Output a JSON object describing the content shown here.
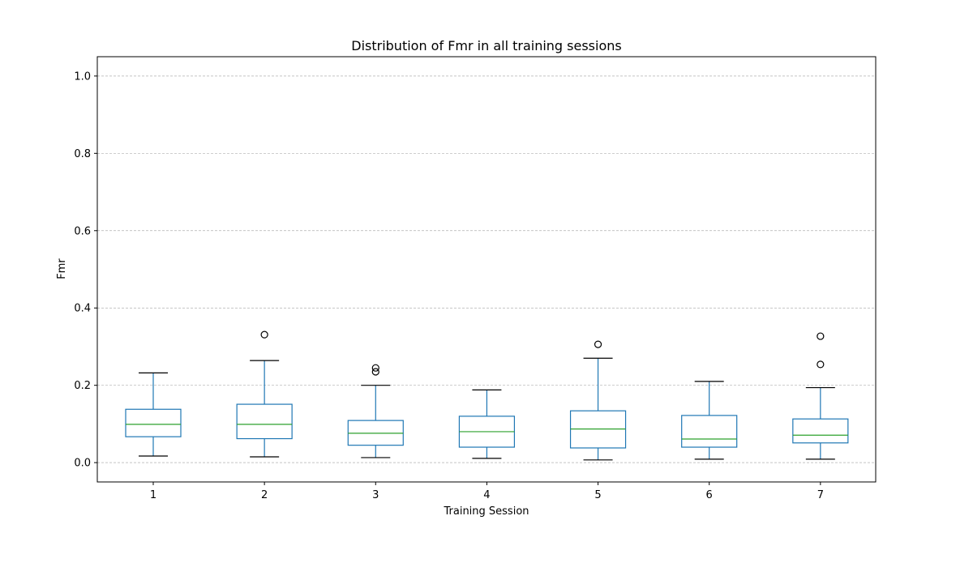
{
  "chart_data": {
    "type": "box",
    "title": "Distribution of Fmr in all training sessions",
    "xlabel": "Training Session",
    "ylabel": "Fmr",
    "ylim": [
      -0.05,
      1.05
    ],
    "yticks": [
      0.0,
      0.2,
      0.4,
      0.6,
      0.8,
      1.0
    ],
    "ytick_labels": [
      "0.0",
      "0.2",
      "0.4",
      "0.6",
      "0.8",
      "1.0"
    ],
    "grid": "y-dashed",
    "colors": {
      "box": "#1f77b4",
      "median": "#2ca02c",
      "whisker_cap": "#000000",
      "grid": "#b0b0b0"
    },
    "categories": [
      "1",
      "2",
      "3",
      "4",
      "5",
      "6",
      "7"
    ],
    "boxes": [
      {
        "label": "1",
        "whislo": 0.017,
        "q1": 0.067,
        "med": 0.099,
        "q3": 0.138,
        "whishi": 0.232,
        "fliers": []
      },
      {
        "label": "2",
        "whislo": 0.015,
        "q1": 0.062,
        "med": 0.099,
        "q3": 0.151,
        "whishi": 0.264,
        "fliers": [
          0.331
        ]
      },
      {
        "label": "3",
        "whislo": 0.013,
        "q1": 0.045,
        "med": 0.076,
        "q3": 0.109,
        "whishi": 0.2,
        "fliers": [
          0.235,
          0.245
        ]
      },
      {
        "label": "4",
        "whislo": 0.011,
        "q1": 0.04,
        "med": 0.08,
        "q3": 0.12,
        "whishi": 0.188,
        "fliers": []
      },
      {
        "label": "5",
        "whislo": 0.007,
        "q1": 0.038,
        "med": 0.087,
        "q3": 0.134,
        "whishi": 0.27,
        "fliers": [
          0.306
        ]
      },
      {
        "label": "6",
        "whislo": 0.009,
        "q1": 0.04,
        "med": 0.061,
        "q3": 0.122,
        "whishi": 0.21,
        "fliers": []
      },
      {
        "label": "7",
        "whislo": 0.009,
        "q1": 0.051,
        "med": 0.071,
        "q3": 0.113,
        "whishi": 0.194,
        "fliers": [
          0.254,
          0.327
        ]
      }
    ]
  }
}
